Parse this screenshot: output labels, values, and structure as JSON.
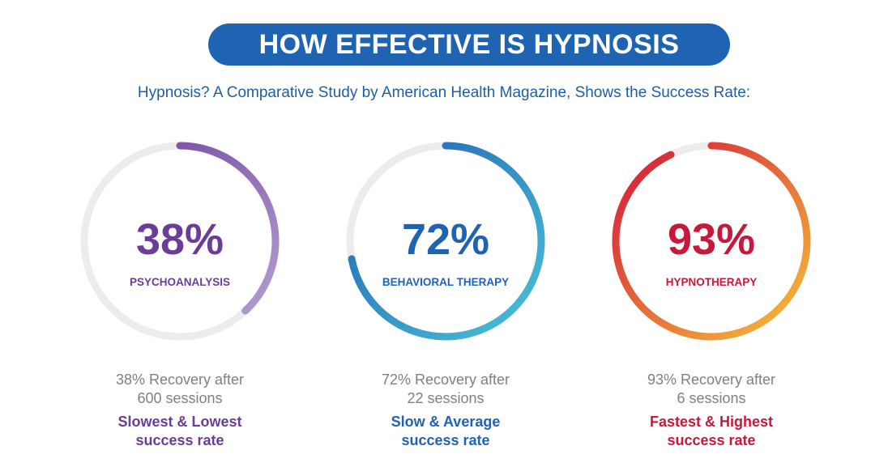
{
  "title": "HOW EFFECTIVE IS HYPNOSIS",
  "subtitle": "Hypnosis? A Comparative Study by American Health Magazine, Shows the Success Rate:",
  "chart_data": {
    "type": "donut-progress",
    "items": [
      {
        "label": "PSYCHOANALYSIS",
        "value": 38,
        "value_label": "38%",
        "recovery_line1": "38% Recovery after",
        "recovery_line2": "600 sessions",
        "tag_line1": "Slowest & Lowest",
        "tag_line2": "success rate",
        "color": "#6a3d98",
        "gradient": [
          "#6a3d98",
          "#b9a3d6"
        ]
      },
      {
        "label": "BEHAVIORAL THERAPY",
        "value": 72,
        "value_label": "72%",
        "recovery_line1": "72% Recovery after",
        "recovery_line2": "22 sessions",
        "tag_line1": "Slow & Average",
        "tag_line2": "success rate",
        "color": "#1f63b3",
        "gradient": [
          "#1f5fb0",
          "#4cc3d9"
        ]
      },
      {
        "label": "HYPNOTHERAPY",
        "value": 93,
        "value_label": "93%",
        "recovery_line1": "93% Recovery after",
        "recovery_line2": "6 sessions",
        "tag_line1": "Fastest & Highest",
        "tag_line2": "success rate",
        "color": "#c8183c",
        "gradient": [
          "#d3163a",
          "#f7c238"
        ]
      }
    ],
    "track_color": "#ececec"
  }
}
